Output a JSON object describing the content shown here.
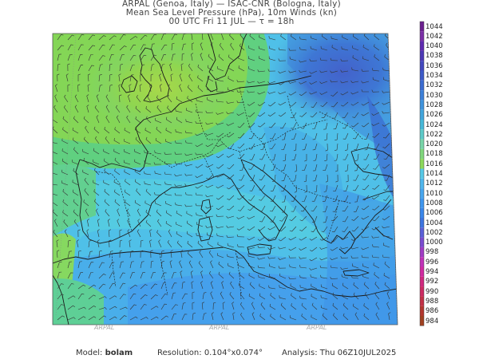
{
  "header": {
    "line1": "ARPAL (Genoa, Italy)  —  ISAC-CNR (Bologna, Italy)",
    "line2": "Mean Sea Level Pressure (hPa), 10m Winds (kn)",
    "line3": "00 UTC Fri 11 JUL  —  τ = 18h"
  },
  "legend": {
    "unit": "hPa",
    "levels": [
      "1044",
      "1042",
      "1040",
      "1038",
      "1036",
      "1034",
      "1032",
      "1030",
      "1028",
      "1026",
      "1024",
      "1022",
      "1020",
      "1018",
      "1016",
      "1014",
      "1012",
      "1010",
      "1008",
      "1006",
      "1004",
      "1002",
      "1000",
      "998",
      "996",
      "994",
      "992",
      "990",
      "988",
      "986",
      "984"
    ],
    "colors": [
      "#6b1f8f",
      "#7a2ea6",
      "#5e2ab0",
      "#4b37b5",
      "#4348bf",
      "#3d5ac8",
      "#3a6bd0",
      "#3c7fd8",
      "#3f93dc",
      "#41a5dc",
      "#46b8d8",
      "#5cc9c8",
      "#77d4a8",
      "#7fd67c",
      "#8cd85a",
      "#56c8e6",
      "#4fb6ec",
      "#48a6ee",
      "#3f96ee",
      "#3a86ea",
      "#3d74e0",
      "#5a5fd8",
      "#7a4bd0",
      "#a03cc4",
      "#c032b8",
      "#d02aa0",
      "#d0287f",
      "#cc2a62",
      "#c23046",
      "#b3362e",
      "#a04020"
    ]
  },
  "map": {
    "watermarks": [
      "ARPAL",
      "ARPAL",
      "ARPAL"
    ]
  },
  "footer": {
    "model_label": "Model:",
    "model_value": "bolam",
    "resolution_label": "Resolution:",
    "resolution_value": "0.104°x0.074°",
    "analysis_label": "Analysis:",
    "analysis_value": "Thu  06Z10JUL2025"
  }
}
